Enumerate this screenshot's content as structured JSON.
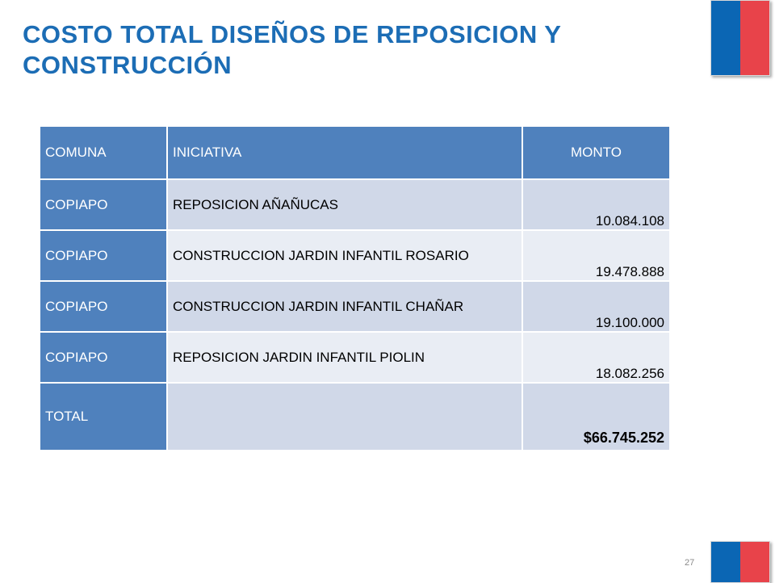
{
  "slide": {
    "title": "COSTO TOTAL DISEÑOS DE REPOSICION Y CONSTRUCCIÓN",
    "page_number": "27"
  },
  "colors": {
    "accent": "#1c6db5",
    "table_header": "#4f81bd",
    "flag_blue": "#0b66b4",
    "flag_red": "#e8434a"
  },
  "table": {
    "headers": [
      "COMUNA",
      "INICIATIVA",
      "MONTO"
    ],
    "rows": [
      {
        "comuna": "COPIAPO",
        "iniciativa": "REPOSICION AÑAÑUCAS",
        "monto": "10.084.108"
      },
      {
        "comuna": "COPIAPO",
        "iniciativa": "CONSTRUCCION JARDIN INFANTIL ROSARIO",
        "monto": "19.478.888"
      },
      {
        "comuna": "COPIAPO",
        "iniciativa": "CONSTRUCCION JARDIN INFANTIL CHAÑAR",
        "monto": "19.100.000"
      },
      {
        "comuna": "COPIAPO",
        "iniciativa": "REPOSICION JARDIN INFANTIL PIOLIN",
        "monto": "18.082.256"
      }
    ],
    "total": {
      "label": "TOTAL",
      "iniciativa": "",
      "monto": "$66.745.252"
    }
  }
}
